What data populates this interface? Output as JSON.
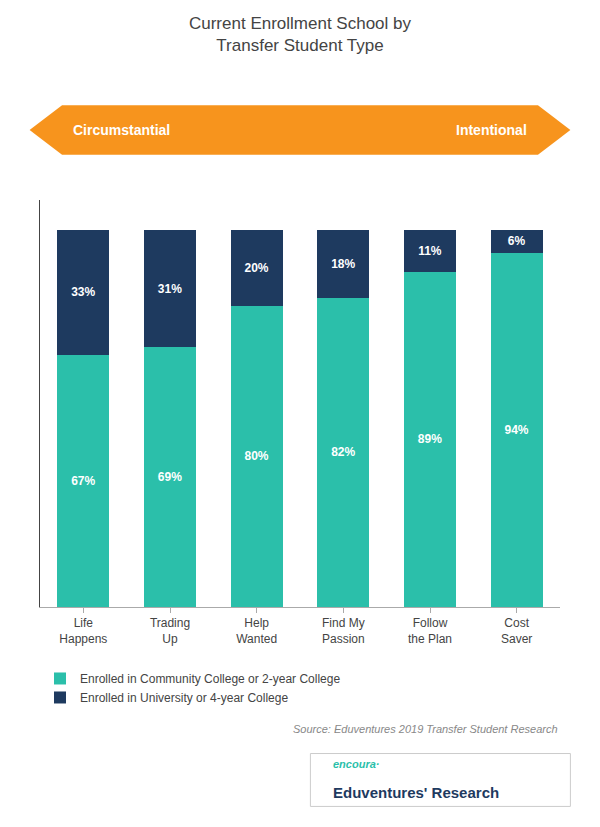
{
  "chart_data": {
    "type": "bar",
    "title": "Current Enrollment School by\nTransfer Student Type",
    "categories": [
      "Life\nHappens",
      "Trading\nUp",
      "Help\nWanted",
      "Find My\nPassion",
      "Follow\nthe Plan",
      "Cost\nSaver"
    ],
    "series": [
      {
        "name": "Enrolled in Community College or 2-year College",
        "color": "#2bbfaa",
        "values": [
          67,
          69,
          80,
          82,
          89,
          94
        ],
        "value_labels": [
          "67%",
          "69%",
          "80%",
          "82%",
          "89%",
          "94%"
        ]
      },
      {
        "name": "Enrolled in University or 4-year College",
        "color": "#1e3a5f",
        "values": [
          33,
          31,
          20,
          18,
          11,
          6
        ],
        "value_labels": [
          "33%",
          "31%",
          "20%",
          "18%",
          "11%",
          "6%"
        ]
      }
    ],
    "stacked": true,
    "data_labels": true,
    "ylim": [
      0,
      108
    ],
    "yticks": [],
    "tick_labels": "x",
    "grid": false,
    "legend": "bottom",
    "annotations": [
      "Circumstantial",
      "Intentional",
      "Source: Eduventures 2019 Transfer Student Research",
      "encoura·",
      "Eduventures' Research"
    ]
  }
}
